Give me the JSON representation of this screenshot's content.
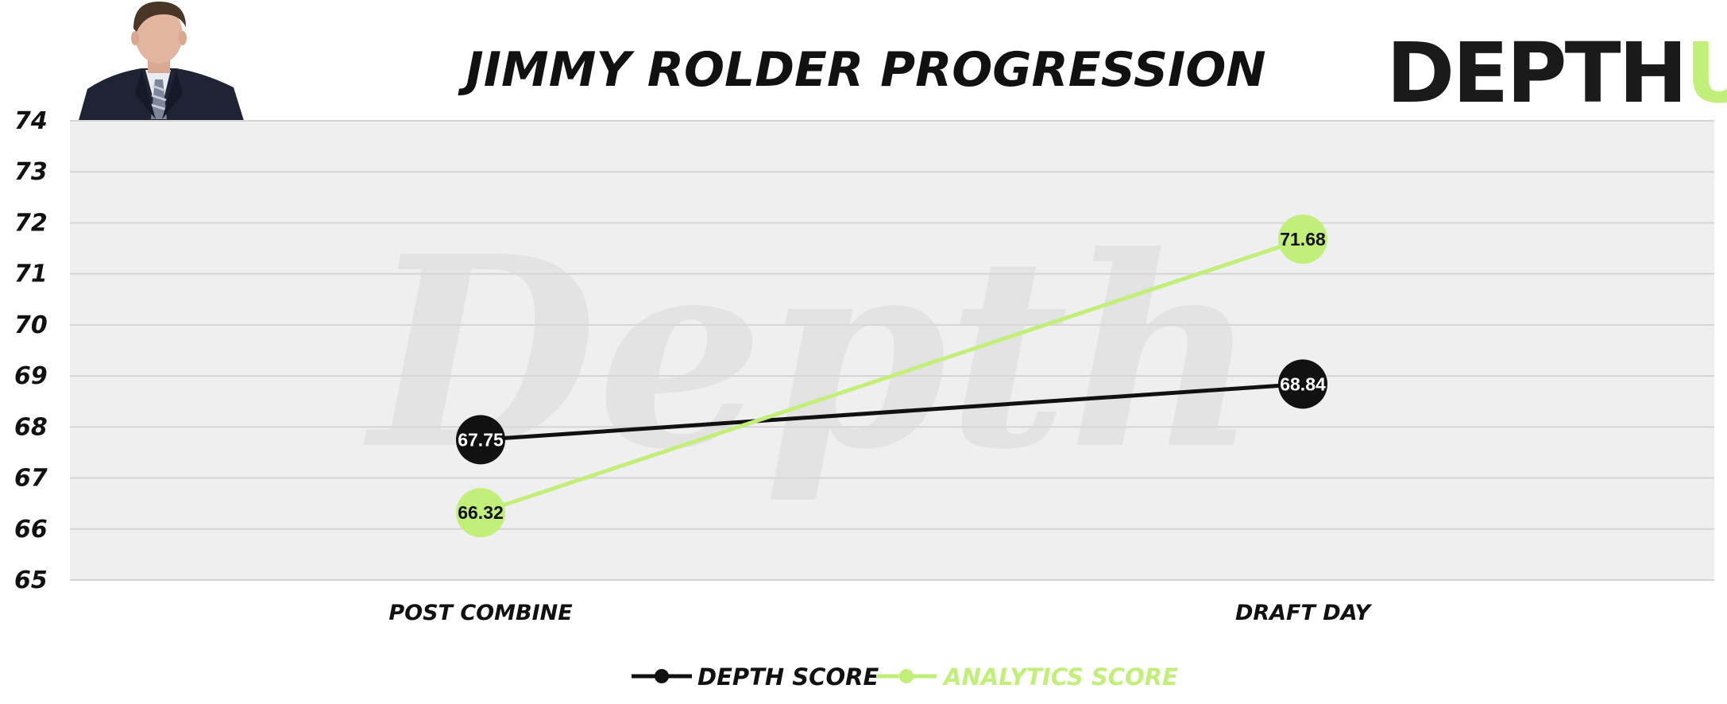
{
  "chart_data": {
    "type": "line",
    "title": "JIMMY ROLDER PROGRESSION",
    "categories": [
      "POST COMBINE",
      "DRAFT DAY"
    ],
    "ylim": [
      65,
      74
    ],
    "yticks": [
      65,
      66,
      67,
      68,
      69,
      70,
      71,
      72,
      73,
      74
    ],
    "grid": true,
    "legend_position": "bottom-center",
    "series": [
      {
        "name": "DEPTH SCORE",
        "values": [
          67.75,
          68.84
        ],
        "labels": [
          "67.75",
          "68.84"
        ],
        "color": "#111111",
        "label_color": "#ffffff"
      },
      {
        "name": "ANALYTICS SCORE",
        "values": [
          66.32,
          71.68
        ],
        "labels": [
          "66.32",
          "71.68"
        ],
        "color": "#c2ef7a",
        "label_color": "#111111"
      }
    ]
  },
  "branding": {
    "logo_main": "DEPTH",
    "logo_accent": "U",
    "logo_main_color": "#1a1a1a",
    "logo_accent_color": "#c2ef7a",
    "watermark": "Depth"
  },
  "colors": {
    "plot_background": "#efefef",
    "gridline": "#d4d4d4"
  },
  "icons": {
    "player_photo": "player-headshot-icon"
  }
}
